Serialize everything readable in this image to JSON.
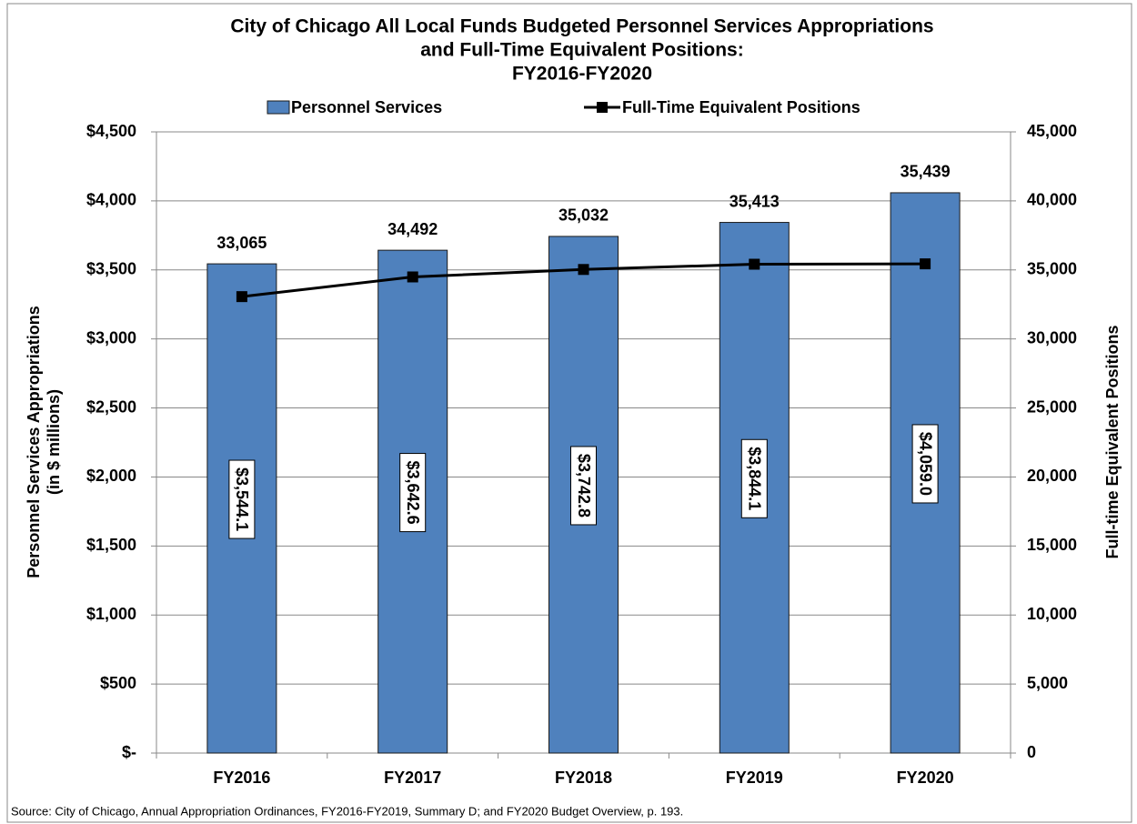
{
  "chart_data": {
    "type": "bar-line",
    "title": [
      "City of Chicago All Local Funds Budgeted Personnel Services Appropriations",
      "and Full-Time Equivalent Positions:",
      "FY2016-FY2020"
    ],
    "categories": [
      "FY2016",
      "FY2017",
      "FY2018",
      "FY2019",
      "FY2020"
    ],
    "series": [
      {
        "name": "Personnel Services",
        "type": "bar",
        "color": "#4f81bd",
        "values": [
          3544.1,
          3642.6,
          3742.8,
          3844.1,
          4059.0
        ],
        "value_labels": [
          "$3,544.1",
          "$3,642.6",
          "$3,742.8",
          "$3,844.1",
          "$4,059.0"
        ]
      },
      {
        "name": "Full-Time Equivalent Positions",
        "type": "line",
        "axis": "y2",
        "color": "#000000",
        "values": [
          33065,
          34492,
          35032,
          35413,
          35439
        ],
        "value_labels": [
          "33,065",
          "34,492",
          "35,032",
          "35,413",
          "35,439"
        ]
      }
    ],
    "ylabel": [
      "Personnel Services Appropriations",
      "(in $ millions)"
    ],
    "y2label": "Full-time  Equivalent  Positions",
    "ylim": [
      0,
      4500
    ],
    "yticks": [
      {
        "value": 0,
        "label": "$-"
      },
      {
        "value": 500,
        "label": "$500"
      },
      {
        "value": 1000,
        "label": "$1,000"
      },
      {
        "value": 1500,
        "label": "$1,500"
      },
      {
        "value": 2000,
        "label": "$2,000"
      },
      {
        "value": 2500,
        "label": "$2,500"
      },
      {
        "value": 3000,
        "label": "$3,000"
      },
      {
        "value": 3500,
        "label": "$3,500"
      },
      {
        "value": 4000,
        "label": "$4,000"
      },
      {
        "value": 4500,
        "label": "$4,500"
      }
    ],
    "y2lim": [
      0,
      45000
    ],
    "y2ticks": [
      0,
      {
        "value": 5000,
        "label": "5,000"
      },
      {
        "value": 10000,
        "label": "10,000"
      },
      {
        "value": 15000,
        "label": "15,000"
      },
      {
        "value": 20000,
        "label": "20,000"
      },
      {
        "value": 25000,
        "label": "25,000"
      },
      {
        "value": 30000,
        "label": "30,000"
      },
      {
        "value": 35000,
        "label": "35,000"
      },
      {
        "value": 40000,
        "label": "40,000"
      },
      {
        "value": 45000,
        "label": "45,000"
      }
    ],
    "grid": true,
    "legend": "top",
    "source": "Source: City of Chicago, Annual Appropriation Ordinances, FY2016-FY2019, Summary D; and FY2020 Budget Overview, p. 193."
  }
}
